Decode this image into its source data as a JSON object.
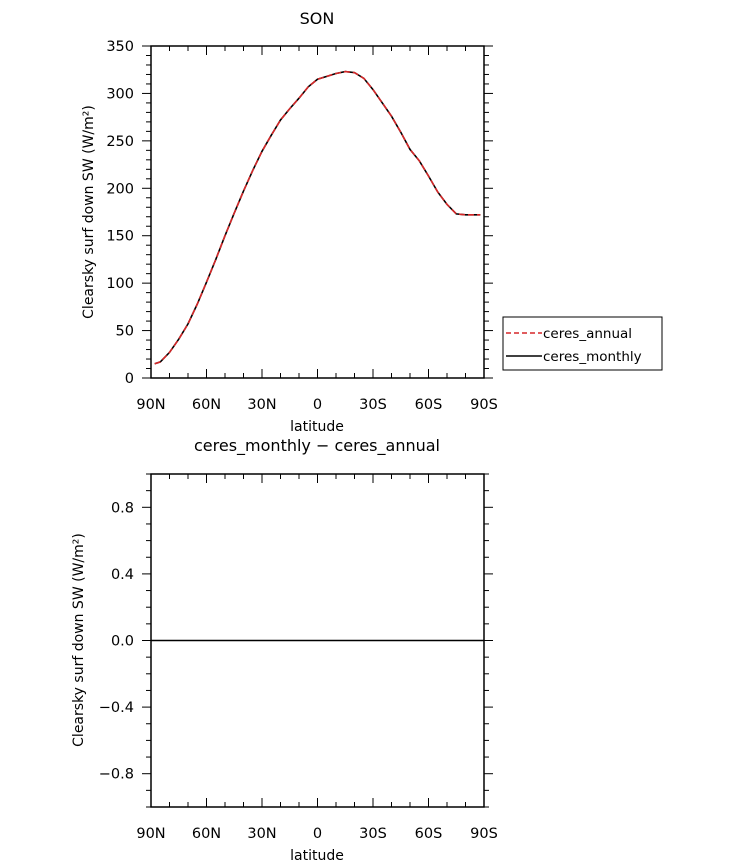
{
  "chart_data": [
    {
      "type": "line",
      "title": "SON",
      "xlabel": "latitude",
      "ylabel": "Clearsky surf down SW (W/m²)",
      "xlim": [
        -90,
        90
      ],
      "ylim": [
        0,
        350
      ],
      "x_ticks": [
        -90,
        -60,
        -30,
        0,
        30,
        60,
        90
      ],
      "x_tick_labels": [
        "90N",
        "60N",
        "30N",
        "0",
        "30S",
        "60S",
        "90S"
      ],
      "y_ticks": [
        0,
        50,
        100,
        150,
        200,
        250,
        300,
        350
      ],
      "y_tick_labels": [
        "0",
        "50",
        "100",
        "150",
        "200",
        "250",
        "300",
        "350"
      ],
      "legend": {
        "placement": "right",
        "entries": [
          {
            "name": "ceres_annual",
            "color": "#d62728",
            "style": "dashed"
          },
          {
            "name": "ceres_monthly",
            "color": "#000000",
            "style": "solid"
          }
        ]
      },
      "series": [
        {
          "name": "ceres_annual",
          "color": "#d62728",
          "x": [
            -88,
            -85,
            -80,
            -75,
            -70,
            -65,
            -60,
            -55,
            -50,
            -45,
            -40,
            -35,
            -30,
            -25,
            -20,
            -15,
            -10,
            -5,
            0,
            5,
            10,
            15,
            20,
            25,
            30,
            35,
            40,
            45,
            50,
            55,
            60,
            65,
            70,
            75,
            80,
            85,
            88
          ],
          "y": [
            15,
            17,
            27,
            41,
            57,
            78,
            101,
            125,
            150,
            174,
            197,
            219,
            239,
            256,
            272,
            284,
            295,
            307,
            315,
            318,
            321,
            323,
            322,
            316,
            304,
            290,
            276,
            259,
            241,
            229,
            213,
            196,
            183,
            173,
            172,
            172,
            172
          ]
        },
        {
          "name": "ceres_monthly",
          "color": "#000000",
          "x": [
            -88,
            -85,
            -80,
            -75,
            -70,
            -65,
            -60,
            -55,
            -50,
            -45,
            -40,
            -35,
            -30,
            -25,
            -20,
            -15,
            -10,
            -5,
            0,
            5,
            10,
            15,
            20,
            25,
            30,
            35,
            40,
            45,
            50,
            55,
            60,
            65,
            70,
            75,
            80,
            85,
            88
          ],
          "y": [
            15,
            17,
            27,
            41,
            57,
            78,
            101,
            125,
            150,
            174,
            197,
            219,
            239,
            256,
            272,
            284,
            295,
            307,
            315,
            318,
            321,
            323,
            322,
            316,
            304,
            290,
            276,
            259,
            241,
            229,
            213,
            196,
            183,
            173,
            172,
            172,
            172
          ]
        }
      ]
    },
    {
      "type": "line",
      "title": "ceres_monthly − ceres_annual",
      "xlabel": "latitude",
      "ylabel": "Clearsky surf down SW (W/m²)",
      "xlim": [
        -90,
        90
      ],
      "ylim": [
        -1,
        1
      ],
      "x_ticks": [
        -90,
        -60,
        -30,
        0,
        30,
        60,
        90
      ],
      "x_tick_labels": [
        "90N",
        "60N",
        "30N",
        "0",
        "30S",
        "60S",
        "90S"
      ],
      "y_ticks": [
        -0.8,
        -0.4,
        0.0,
        0.4,
        0.8
      ],
      "y_tick_labels": [
        "−0.8",
        "−0.4",
        "0.0",
        "0.4",
        "0.8"
      ],
      "series": [
        {
          "color": "#000000",
          "x": [
            -90,
            -60,
            -30,
            0,
            30,
            60,
            90
          ],
          "y": [
            0,
            0,
            0,
            0,
            0,
            0,
            0
          ]
        }
      ]
    }
  ]
}
